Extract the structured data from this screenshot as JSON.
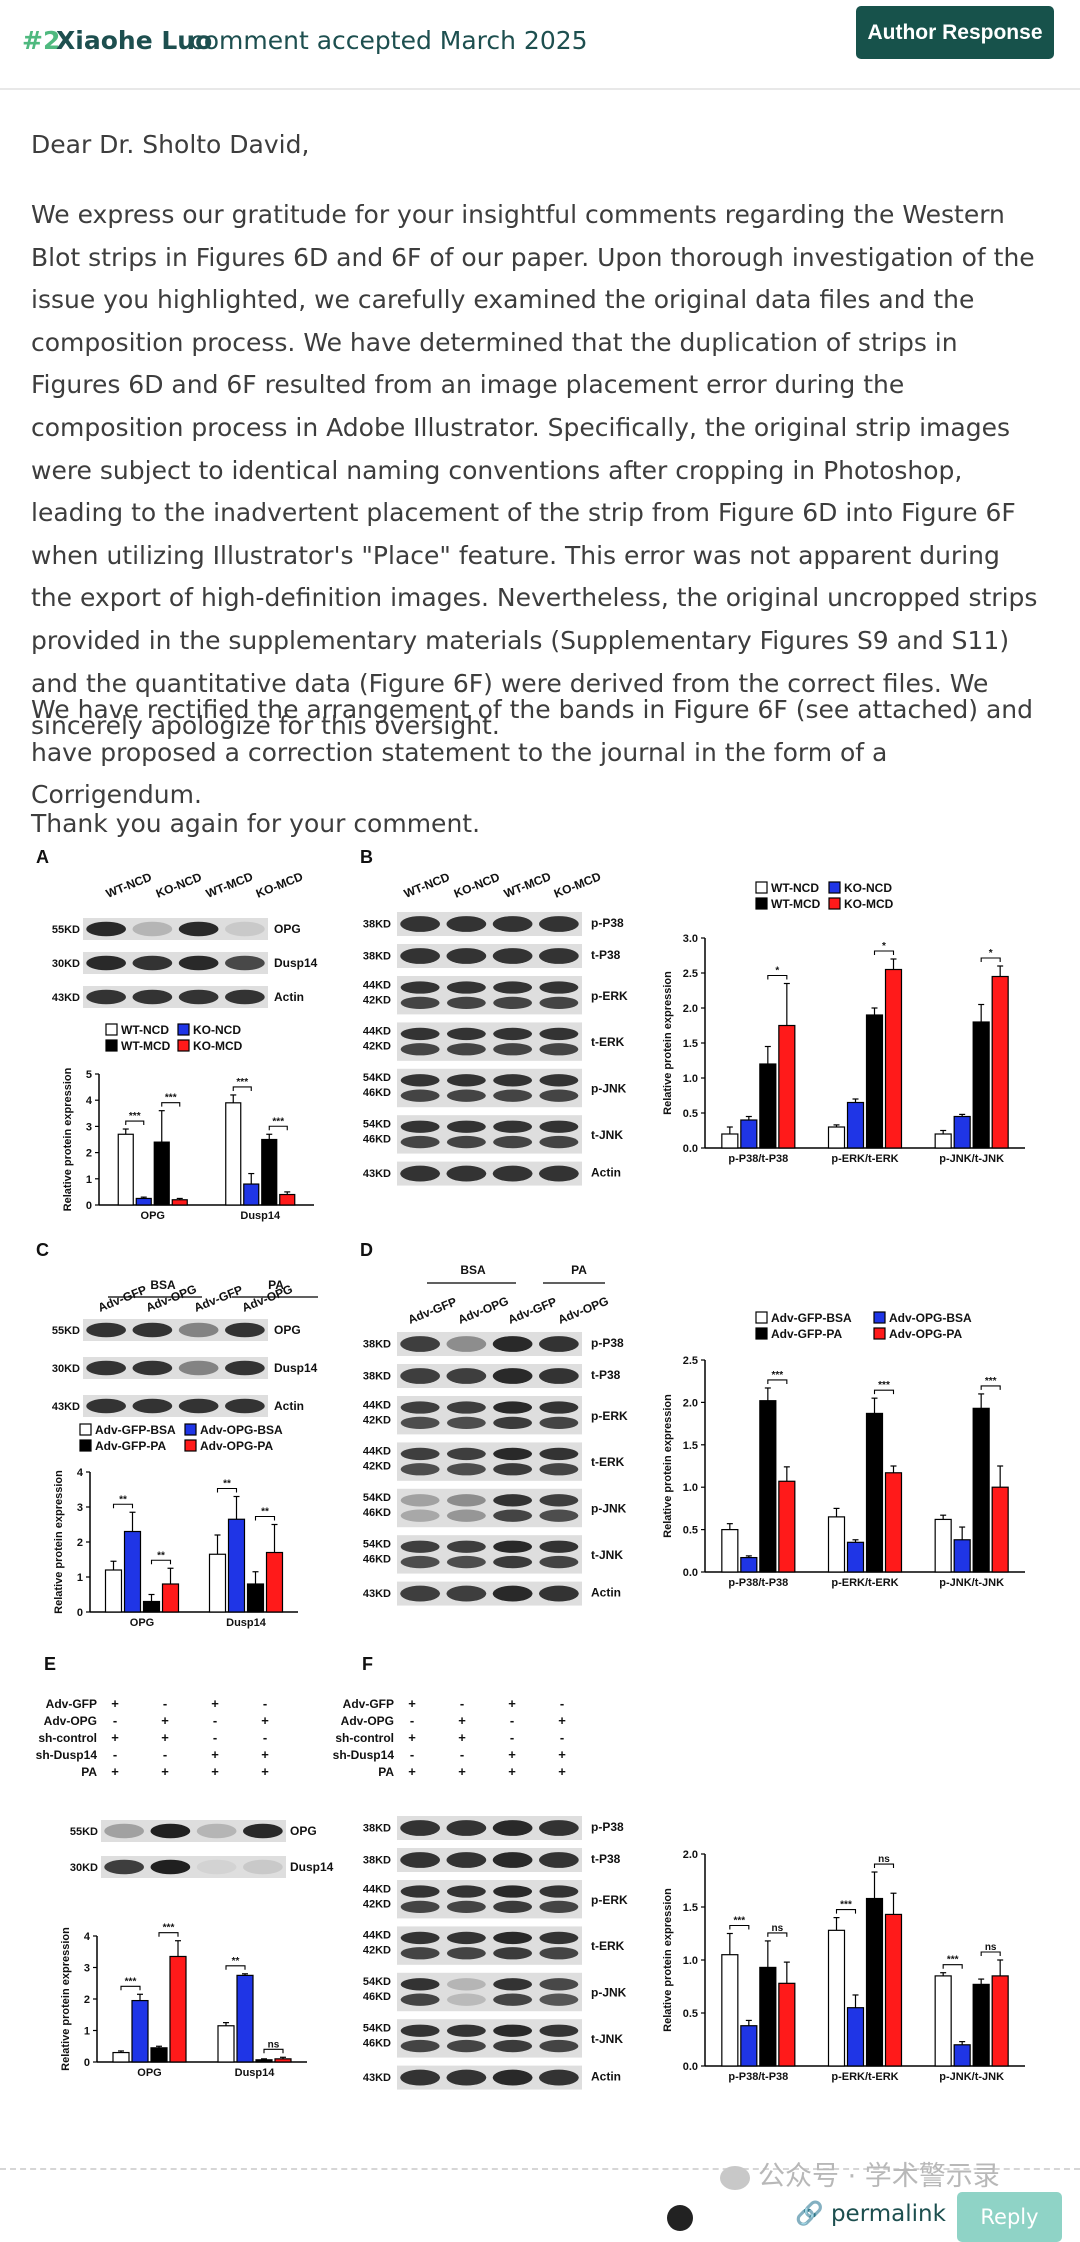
{
  "header": {
    "comment_number": "#2",
    "author": "Xiaohe Luo",
    "meta": "comment accepted March 2025",
    "button": "Author Response"
  },
  "body": {
    "greeting": "Dear Dr. Sholto David,",
    "paragraph_1": "We express our gratitude for your insightful comments regarding the Western Blot strips in Figures 6D and 6F of our paper. Upon thorough investigation of the issue you highlighted, we carefully examined the original data files and the composition process. We have determined that the duplication of strips in Figures 6D and 6F resulted from an image placement error during the composition process in Adobe Illustrator. Specifically, the original strip images were subject to identical naming conventions after cropping in Photoshop, leading to the inadvertent placement of the strip from Figure 6D into Figure 6F when utilizing Illustrator's \"Place\" feature. This error was not apparent during the export of high-definition images. Nevertheless, the original uncropped strips provided in the supplementary materials (Supplementary Figures S9 and S11) and the quantitative data (Figure 6F) were derived from the correct files. We sincerely apologize for this oversight.",
    "paragraph_2": "We have rectified the arrangement of the bands in Figure 6F (see attached) and have proposed a correction statement to the journal in the form of a Corrigendum.",
    "closing": "Thank you again for your comment."
  },
  "figure": {
    "panel_letters": [
      "A",
      "B",
      "C",
      "D",
      "E",
      "F"
    ],
    "panel_a": {
      "lanes": [
        "WT-NCD",
        "KO-NCD",
        "WT-MCD",
        "KO-MCD"
      ],
      "blots": [
        {
          "kd": "55KD",
          "protein": "OPG"
        },
        {
          "kd": "30KD",
          "protein": "Dusp14"
        },
        {
          "kd": "43KD",
          "protein": "Actin"
        }
      ]
    },
    "panel_b": {
      "lanes": [
        "WT-NCD",
        "KO-NCD",
        "WT-MCD",
        "KO-MCD"
      ],
      "blots": [
        {
          "kd": "38KD",
          "protein": "p-P38"
        },
        {
          "kd": "38KD",
          "protein": "t-P38"
        },
        {
          "kd": "44KD\n42KD",
          "protein": "p-ERK"
        },
        {
          "kd": "44KD\n42KD",
          "protein": "t-ERK"
        },
        {
          "kd": "54KD\n46KD",
          "protein": "p-JNK"
        },
        {
          "kd": "54KD\n46KD",
          "protein": "t-JNK"
        },
        {
          "kd": "43KD",
          "protein": "Actin"
        }
      ]
    },
    "panel_c": {
      "groups": [
        "BSA",
        "PA"
      ],
      "lanes": [
        "Adv-GFP",
        "Adv-OPG",
        "Adv-GFP",
        "Adv-OPG"
      ],
      "blots": [
        {
          "kd": "55KD",
          "protein": "OPG"
        },
        {
          "kd": "30KD",
          "protein": "Dusp14"
        },
        {
          "kd": "43KD",
          "protein": "Actin"
        }
      ]
    },
    "panel_d": {
      "groups": [
        "BSA",
        "PA"
      ],
      "lanes": [
        "Adv-GFP",
        "Adv-OPG",
        "Adv-GFP",
        "Adv-OPG"
      ],
      "blots": [
        {
          "kd": "38KD",
          "protein": "p-P38"
        },
        {
          "kd": "38KD",
          "protein": "t-P38"
        },
        {
          "kd": "44KD\n42KD",
          "protein": "p-ERK"
        },
        {
          "kd": "44KD\n42KD",
          "protein": "t-ERK"
        },
        {
          "kd": "54KD\n46KD",
          "protein": "p-JNK"
        },
        {
          "kd": "54KD\n46KD",
          "protein": "t-JNK"
        },
        {
          "kd": "43KD",
          "protein": "Actin"
        }
      ]
    },
    "panel_e": {
      "conditions": [
        {
          "label": "Adv-GFP",
          "values": [
            "+",
            "-",
            "+",
            "-"
          ]
        },
        {
          "label": "Adv-OPG",
          "values": [
            "-",
            "+",
            "-",
            "+"
          ]
        },
        {
          "label": "sh-control",
          "values": [
            "+",
            "+",
            "-",
            "-"
          ]
        },
        {
          "label": "sh-Dusp14",
          "values": [
            "-",
            "-",
            "+",
            "+"
          ]
        },
        {
          "label": "PA",
          "values": [
            "+",
            "+",
            "+",
            "+"
          ]
        }
      ],
      "blots": [
        {
          "kd": "55KD",
          "protein": "OPG"
        },
        {
          "kd": "30KD",
          "protein": "Dusp14"
        }
      ]
    },
    "panel_f": {
      "conditions": [
        {
          "label": "Adv-GFP",
          "values": [
            "+",
            "-",
            "+",
            "-"
          ]
        },
        {
          "label": "Adv-OPG",
          "values": [
            "-",
            "+",
            "-",
            "+"
          ]
        },
        {
          "label": "sh-control",
          "values": [
            "+",
            "+",
            "-",
            "-"
          ]
        },
        {
          "label": "sh-Dusp14",
          "values": [
            "-",
            "-",
            "+",
            "+"
          ]
        },
        {
          "label": "PA",
          "values": [
            "+",
            "+",
            "+",
            "+"
          ]
        }
      ],
      "blots": [
        {
          "kd": "38KD",
          "protein": "p-P38"
        },
        {
          "kd": "38KD",
          "protein": "t-P38"
        },
        {
          "kd": "44KD\n42KD",
          "protein": "p-ERK"
        },
        {
          "kd": "44KD\n42KD",
          "protein": "t-ERK"
        },
        {
          "kd": "54KD\n46KD",
          "protein": "p-JNK"
        },
        {
          "kd": "54KD\n46KD",
          "protein": "t-JNK"
        },
        {
          "kd": "43KD",
          "protein": "Actin"
        }
      ]
    }
  },
  "chart_data": [
    {
      "id": "a",
      "type": "bar",
      "categories": [
        "OPG",
        "Dusp14"
      ],
      "ylabel": "Relative protein expression",
      "ylim": [
        0,
        5
      ],
      "yticks": [
        0,
        1,
        2,
        3,
        4,
        5
      ],
      "legend": [
        "WT-NCD",
        "KO-NCD",
        "WT-MCD",
        "KO-MCD"
      ],
      "series": [
        {
          "name": "WT-NCD",
          "values": [
            2.7,
            3.9
          ],
          "errors": [
            0.2,
            0.3
          ]
        },
        {
          "name": "KO-NCD",
          "values": [
            0.25,
            0.8
          ],
          "errors": [
            0.05,
            0.4
          ]
        },
        {
          "name": "WT-MCD",
          "values": [
            2.4,
            2.5
          ],
          "errors": [
            1.2,
            0.2
          ]
        },
        {
          "name": "KO-MCD",
          "values": [
            0.2,
            0.4
          ],
          "errors": [
            0.05,
            0.1
          ]
        }
      ],
      "annotations": [
        "***",
        "***",
        "***",
        "***"
      ]
    },
    {
      "id": "b",
      "type": "bar",
      "categories": [
        "p-P38/t-P38",
        "p-ERK/t-ERK",
        "p-JNK/t-JNK"
      ],
      "ylabel": "Relative protein expression",
      "ylim": [
        0,
        3.0
      ],
      "yticks": [
        "0.0",
        "0.5",
        "1.0",
        "1.5",
        "2.0",
        "2.5",
        "3.0"
      ],
      "legend": [
        "WT-NCD",
        "KO-NCD",
        "WT-MCD",
        "KO-MCD"
      ],
      "series": [
        {
          "name": "WT-NCD",
          "values": [
            0.2,
            0.3,
            0.2
          ],
          "errors": [
            0.1,
            0.03,
            0.05
          ]
        },
        {
          "name": "KO-NCD",
          "values": [
            0.4,
            0.65,
            0.45
          ],
          "errors": [
            0.05,
            0.05,
            0.03
          ]
        },
        {
          "name": "WT-MCD",
          "values": [
            1.2,
            1.9,
            1.8
          ],
          "errors": [
            0.25,
            0.1,
            0.25
          ]
        },
        {
          "name": "KO-MCD",
          "values": [
            1.75,
            2.55,
            2.45
          ],
          "errors": [
            0.6,
            0.15,
            0.15
          ]
        }
      ],
      "annotations": [
        "*",
        "*",
        "*"
      ]
    },
    {
      "id": "c",
      "type": "bar",
      "categories": [
        "OPG",
        "Dusp14"
      ],
      "ylabel": "Relative protein expression",
      "ylim": [
        0,
        4
      ],
      "yticks": [
        0,
        1,
        2,
        3,
        4
      ],
      "legend": [
        "Adv-GFP-BSA",
        "Adv-OPG-BSA",
        "Adv-GFP-PA",
        "Adv-OPG-PA"
      ],
      "series": [
        {
          "name": "Adv-GFP-BSA",
          "values": [
            1.2,
            1.65
          ],
          "errors": [
            0.25,
            0.55
          ]
        },
        {
          "name": "Adv-OPG-BSA",
          "values": [
            2.3,
            2.65
          ],
          "errors": [
            0.55,
            0.65
          ]
        },
        {
          "name": "Adv-GFP-PA",
          "values": [
            0.3,
            0.8
          ],
          "errors": [
            0.2,
            0.35
          ]
        },
        {
          "name": "Adv-OPG-PA",
          "values": [
            0.8,
            1.7
          ],
          "errors": [
            0.45,
            0.8
          ]
        }
      ],
      "annotations": [
        "**",
        "**",
        "**",
        "**"
      ]
    },
    {
      "id": "d",
      "type": "bar",
      "categories": [
        "p-P38/t-P38",
        "p-ERK/t-ERK",
        "p-JNK/t-JNK"
      ],
      "ylabel": "Relative protein expression",
      "ylim": [
        0,
        2.5
      ],
      "yticks": [
        "0.0",
        "0.5",
        "1.0",
        "1.5",
        "2.0",
        "2.5"
      ],
      "legend": [
        "Adv-GFP-BSA",
        "Adv-OPG-BSA",
        "Adv-GFP-PA",
        "Adv-OPG-PA"
      ],
      "series": [
        {
          "name": "Adv-GFP-BSA",
          "values": [
            0.5,
            0.65,
            0.62
          ],
          "errors": [
            0.07,
            0.1,
            0.05
          ]
        },
        {
          "name": "Adv-OPG-BSA",
          "values": [
            0.17,
            0.35,
            0.38
          ],
          "errors": [
            0.02,
            0.03,
            0.15
          ]
        },
        {
          "name": "Adv-GFP-PA",
          "values": [
            2.02,
            1.87,
            1.93
          ],
          "errors": [
            0.15,
            0.18,
            0.17
          ]
        },
        {
          "name": "Adv-OPG-PA",
          "values": [
            1.07,
            1.17,
            1.0
          ],
          "errors": [
            0.17,
            0.08,
            0.25
          ]
        }
      ],
      "annotations": [
        "***",
        "***",
        "***"
      ]
    },
    {
      "id": "e",
      "type": "bar",
      "categories": [
        "OPG",
        "Dusp14"
      ],
      "ylabel": "Relative protein expression",
      "ylim": [
        0,
        4
      ],
      "yticks": [
        0,
        1,
        2,
        3,
        4
      ],
      "series": [
        {
          "values": [
            0.3,
            1.15
          ],
          "errors": [
            0.05,
            0.1
          ]
        },
        {
          "values": [
            1.95,
            2.75
          ],
          "errors": [
            0.2,
            0.05
          ]
        },
        {
          "values": [
            0.45,
            0.07
          ],
          "errors": [
            0.05,
            0.03
          ]
        },
        {
          "values": [
            3.35,
            0.1
          ],
          "errors": [
            0.5,
            0.05
          ]
        }
      ],
      "annotations": [
        "***",
        "***",
        "**",
        "ns"
      ]
    },
    {
      "id": "f",
      "type": "bar",
      "categories": [
        "p-P38/t-P38",
        "p-ERK/t-ERK",
        "p-JNK/t-JNK"
      ],
      "ylabel": "Relative protein expression",
      "ylim": [
        0,
        2.0
      ],
      "yticks": [
        "0.0",
        "0.5",
        "1.0",
        "1.5",
        "2.0"
      ],
      "series": [
        {
          "values": [
            1.05,
            1.28,
            0.85
          ],
          "errors": [
            0.2,
            0.12,
            0.03
          ]
        },
        {
          "values": [
            0.38,
            0.55,
            0.2
          ],
          "errors": [
            0.05,
            0.12,
            0.03
          ]
        },
        {
          "values": [
            0.93,
            1.58,
            0.77
          ],
          "errors": [
            0.25,
            0.25,
            0.05
          ]
        },
        {
          "values": [
            0.78,
            1.43,
            0.85
          ],
          "errors": [
            0.2,
            0.2,
            0.15
          ]
        }
      ],
      "annotations": [
        "***",
        "ns",
        "***",
        "ns",
        "***",
        "ns"
      ]
    }
  ],
  "colors": {
    "series": [
      "#ffffff",
      "#1f35e6",
      "#000000",
      "#ff1a1a"
    ],
    "accent": "#17524b",
    "number": "#4fb97f"
  },
  "footer": {
    "watermark": "公众号 · 学术警示录",
    "permalink": "permalink",
    "reply": "Reply",
    "icons": [
      "wechat-icon",
      "info-icon",
      "link-icon"
    ]
  }
}
